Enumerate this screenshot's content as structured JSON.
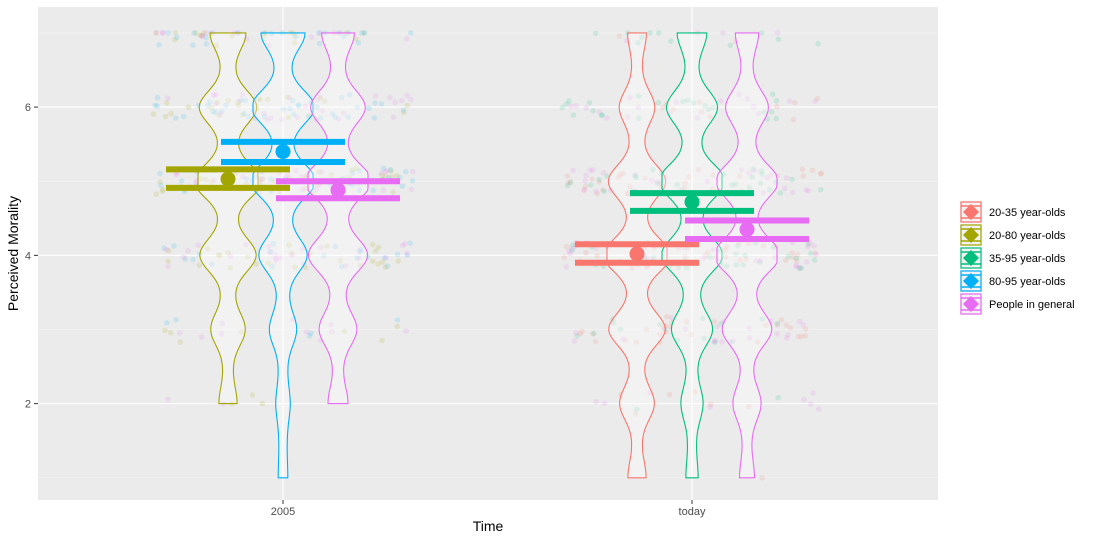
{
  "chart_data": {
    "type": "violin",
    "xlabel": "Time",
    "ylabel": "Perceived Morality",
    "categories": [
      "2005",
      "today"
    ],
    "ylim": [
      0.7,
      7.35
    ],
    "yticks": [
      2,
      4,
      6
    ],
    "grid": true,
    "legend_position": "right",
    "series": [
      {
        "name": "20-35 year-olds",
        "color": "#F8766D",
        "points": [
          {
            "x": "today",
            "mean": 4.02,
            "ci_low": 3.9,
            "ci_high": 4.15,
            "min": 1.0,
            "max": 7.0
          }
        ]
      },
      {
        "name": "20-80 year-olds",
        "color": "#A3A500",
        "points": [
          {
            "x": "2005",
            "mean": 5.03,
            "ci_low": 4.91,
            "ci_high": 5.16,
            "min": 2.0,
            "max": 7.0
          }
        ]
      },
      {
        "name": "35-95 year-olds",
        "color": "#00BF7D",
        "points": [
          {
            "x": "today",
            "mean": 4.72,
            "ci_low": 4.6,
            "ci_high": 4.84,
            "min": 1.0,
            "max": 7.0
          }
        ]
      },
      {
        "name": "80-95 year-olds",
        "color": "#00B0F6",
        "points": [
          {
            "x": "2005",
            "mean": 5.4,
            "ci_low": 5.26,
            "ci_high": 5.53,
            "min": 1.0,
            "max": 7.0
          }
        ]
      },
      {
        "name": "People in general",
        "color": "#E76BF3",
        "points": [
          {
            "x": "2005",
            "mean": 4.88,
            "ci_low": 4.77,
            "ci_high": 5.0,
            "min": 2.0,
            "max": 7.0
          },
          {
            "x": "today",
            "mean": 4.35,
            "ci_low": 4.22,
            "ci_high": 4.47,
            "min": 1.0,
            "max": 7.0
          }
        ]
      }
    ]
  }
}
